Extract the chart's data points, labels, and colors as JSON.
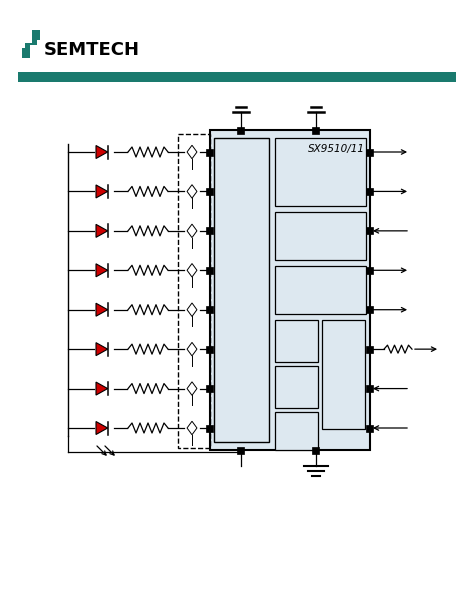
{
  "bg_color": "#ffffff",
  "teal_bar_color": "#1a7a6e",
  "semtech_teal": "#1a7a6e",
  "led_color": "#cc0000",
  "line_color": "#000000",
  "box_fill": "#dde8f0",
  "chip_label": "SX9510/11",
  "fig_width": 4.74,
  "fig_height": 6.13,
  "dpi": 100
}
